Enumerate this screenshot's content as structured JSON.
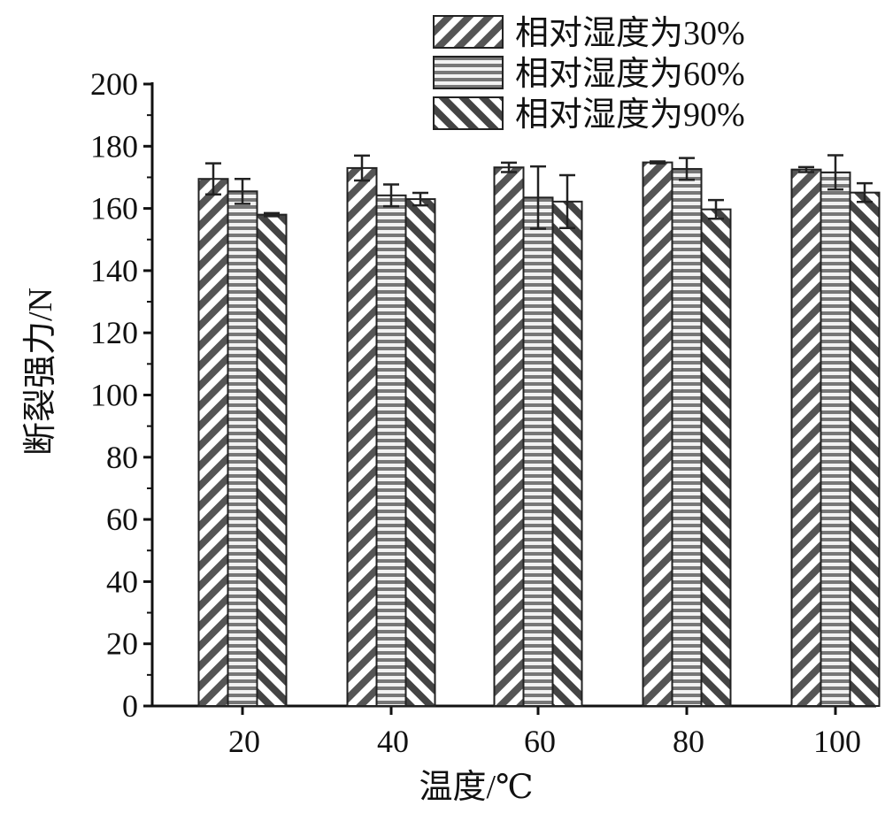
{
  "chart_data": {
    "type": "bar",
    "xlabel": "温度/℃",
    "ylabel": "断裂强力/N",
    "categories": [
      "20",
      "40",
      "60",
      "80",
      "100"
    ],
    "ylim": [
      0,
      200
    ],
    "yticks": [
      0,
      20,
      40,
      60,
      80,
      100,
      120,
      140,
      160,
      180,
      200
    ],
    "grid": false,
    "legend_position": "top-right",
    "series": [
      {
        "name": "相对湿度为30%",
        "pattern": "diagonal-right",
        "values": [
          169.5,
          173,
          173.2,
          174.8,
          172.5
        ],
        "errors": [
          5.0,
          4.0,
          1.5,
          0.3,
          0.8
        ]
      },
      {
        "name": "相对湿度为60%",
        "pattern": "horizontal",
        "values": [
          165.5,
          164.2,
          163.5,
          172.7,
          171.6
        ],
        "errors": [
          4.0,
          3.5,
          10.0,
          3.5,
          5.5
        ]
      },
      {
        "name": "相对湿度为90%",
        "pattern": "diagonal-left",
        "values": [
          158,
          163,
          162.2,
          159.7,
          165.1
        ],
        "errors": [
          0.5,
          2.0,
          8.5,
          3.0,
          3.0
        ]
      }
    ],
    "colors": {
      "bar_edge": "#222222",
      "bar_fill": "#ffffff",
      "stripe": "#555555",
      "stripe_dark": "#444444",
      "axis": "#111111"
    }
  }
}
